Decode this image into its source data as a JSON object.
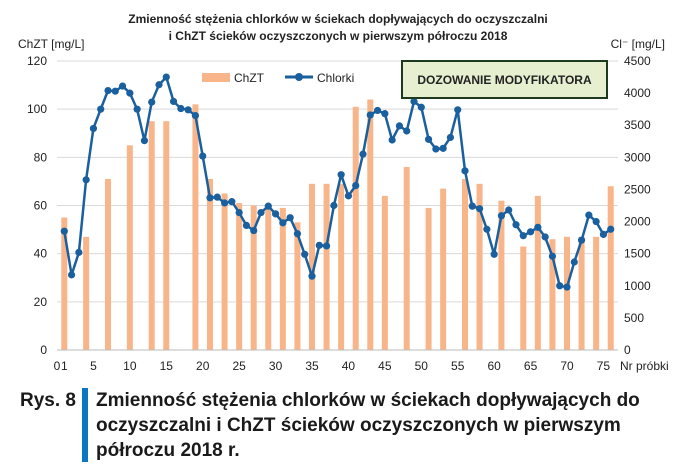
{
  "chart_data": {
    "type": "bar+line",
    "title_line1": "Zmienność stężenia chlorków w ściekach dopływających do oczyszczalni",
    "title_line2": "i ChZT ścieków oczyszczonych w pierwszym półroczu 2018",
    "ylabel_left": "ChZT [mg/L]",
    "ylabel_right": "Cl⁻ [mg/L]",
    "xlabel": "Nr próbki",
    "xlim": [
      0,
      77
    ],
    "ylim_left": [
      0,
      120
    ],
    "ylim_right": [
      0,
      4500
    ],
    "x_ticks": [
      "0",
      "1",
      "5",
      "10",
      "15",
      "20",
      "25",
      "30",
      "35",
      "40",
      "45",
      "50",
      "55",
      "60",
      "65",
      "70",
      "75"
    ],
    "y_ticks_left": [
      "0",
      "20",
      "40",
      "60",
      "80",
      "100",
      "120"
    ],
    "y_ticks_right": [
      "0",
      "500",
      "1000",
      "1500",
      "2000",
      "2500",
      "3000",
      "3500",
      "4000",
      "4500"
    ],
    "grid": true,
    "legend_position": "top-center",
    "annotation": "DOZOWANIE MODYFIKATORA",
    "series": [
      {
        "name": "ChZT",
        "axis": "left",
        "color": "#f8b58a",
        "x": [
          1,
          4,
          7,
          10,
          13,
          15,
          19,
          21,
          23,
          25,
          27,
          29,
          31,
          33,
          35,
          37,
          39,
          41,
          43,
          45,
          48,
          51,
          53,
          56,
          58,
          61,
          64,
          66,
          68,
          70,
          72,
          74,
          76
        ],
        "values": [
          55,
          47,
          71,
          85,
          95,
          95,
          102,
          71,
          65,
          61,
          60,
          59,
          59,
          53,
          69,
          69,
          69,
          101,
          104,
          64,
          76,
          59,
          67,
          71,
          69,
          62,
          43,
          64,
          46,
          47,
          47,
          47,
          68
        ]
      },
      {
        "name": "Chlorki",
        "axis": "right",
        "color": "#1a5f9e",
        "x": [
          1,
          2,
          3,
          4,
          5,
          6,
          7,
          8,
          9,
          10,
          11,
          12,
          13,
          14,
          15,
          16,
          17,
          18,
          19,
          20,
          21,
          22,
          23,
          24,
          25,
          26,
          27,
          28,
          29,
          30,
          31,
          32,
          33,
          34,
          35,
          36,
          37,
          38,
          39,
          40,
          41,
          42,
          43,
          44,
          45,
          46,
          47,
          48,
          49,
          50,
          51,
          52,
          53,
          54,
          55,
          56,
          57,
          58,
          59,
          60,
          61,
          62,
          63,
          64,
          65,
          66,
          67,
          68,
          69,
          70,
          71,
          72,
          73,
          74,
          75,
          76
        ],
        "values": [
          1850,
          1170,
          1520,
          2650,
          3450,
          3750,
          4040,
          4030,
          4110,
          4000,
          3750,
          3260,
          3860,
          4130,
          4250,
          3870,
          3760,
          3740,
          3650,
          3020,
          2370,
          2380,
          2290,
          2310,
          2140,
          1940,
          1860,
          2140,
          2240,
          2120,
          1980,
          2060,
          1810,
          1490,
          1150,
          1630,
          1620,
          2250,
          2730,
          2400,
          2560,
          3050,
          3660,
          3730,
          3680,
          3270,
          3490,
          3410,
          3870,
          3780,
          3280,
          3130,
          3140,
          3310,
          3740,
          2790,
          2240,
          2200,
          1880,
          1490,
          2090,
          2180,
          1950,
          1780,
          1840,
          1910,
          1760,
          1460,
          1000,
          980,
          1370,
          1710,
          2100,
          2000,
          1800,
          1880
        ]
      }
    ]
  },
  "caption": {
    "label": "Rys. 8",
    "text": "Zmienność stężenia chlorków w ściekach dopływających do oczyszczalni i ChZT ścieków oczyszczonych w pierwszym półroczu 2018 r."
  }
}
